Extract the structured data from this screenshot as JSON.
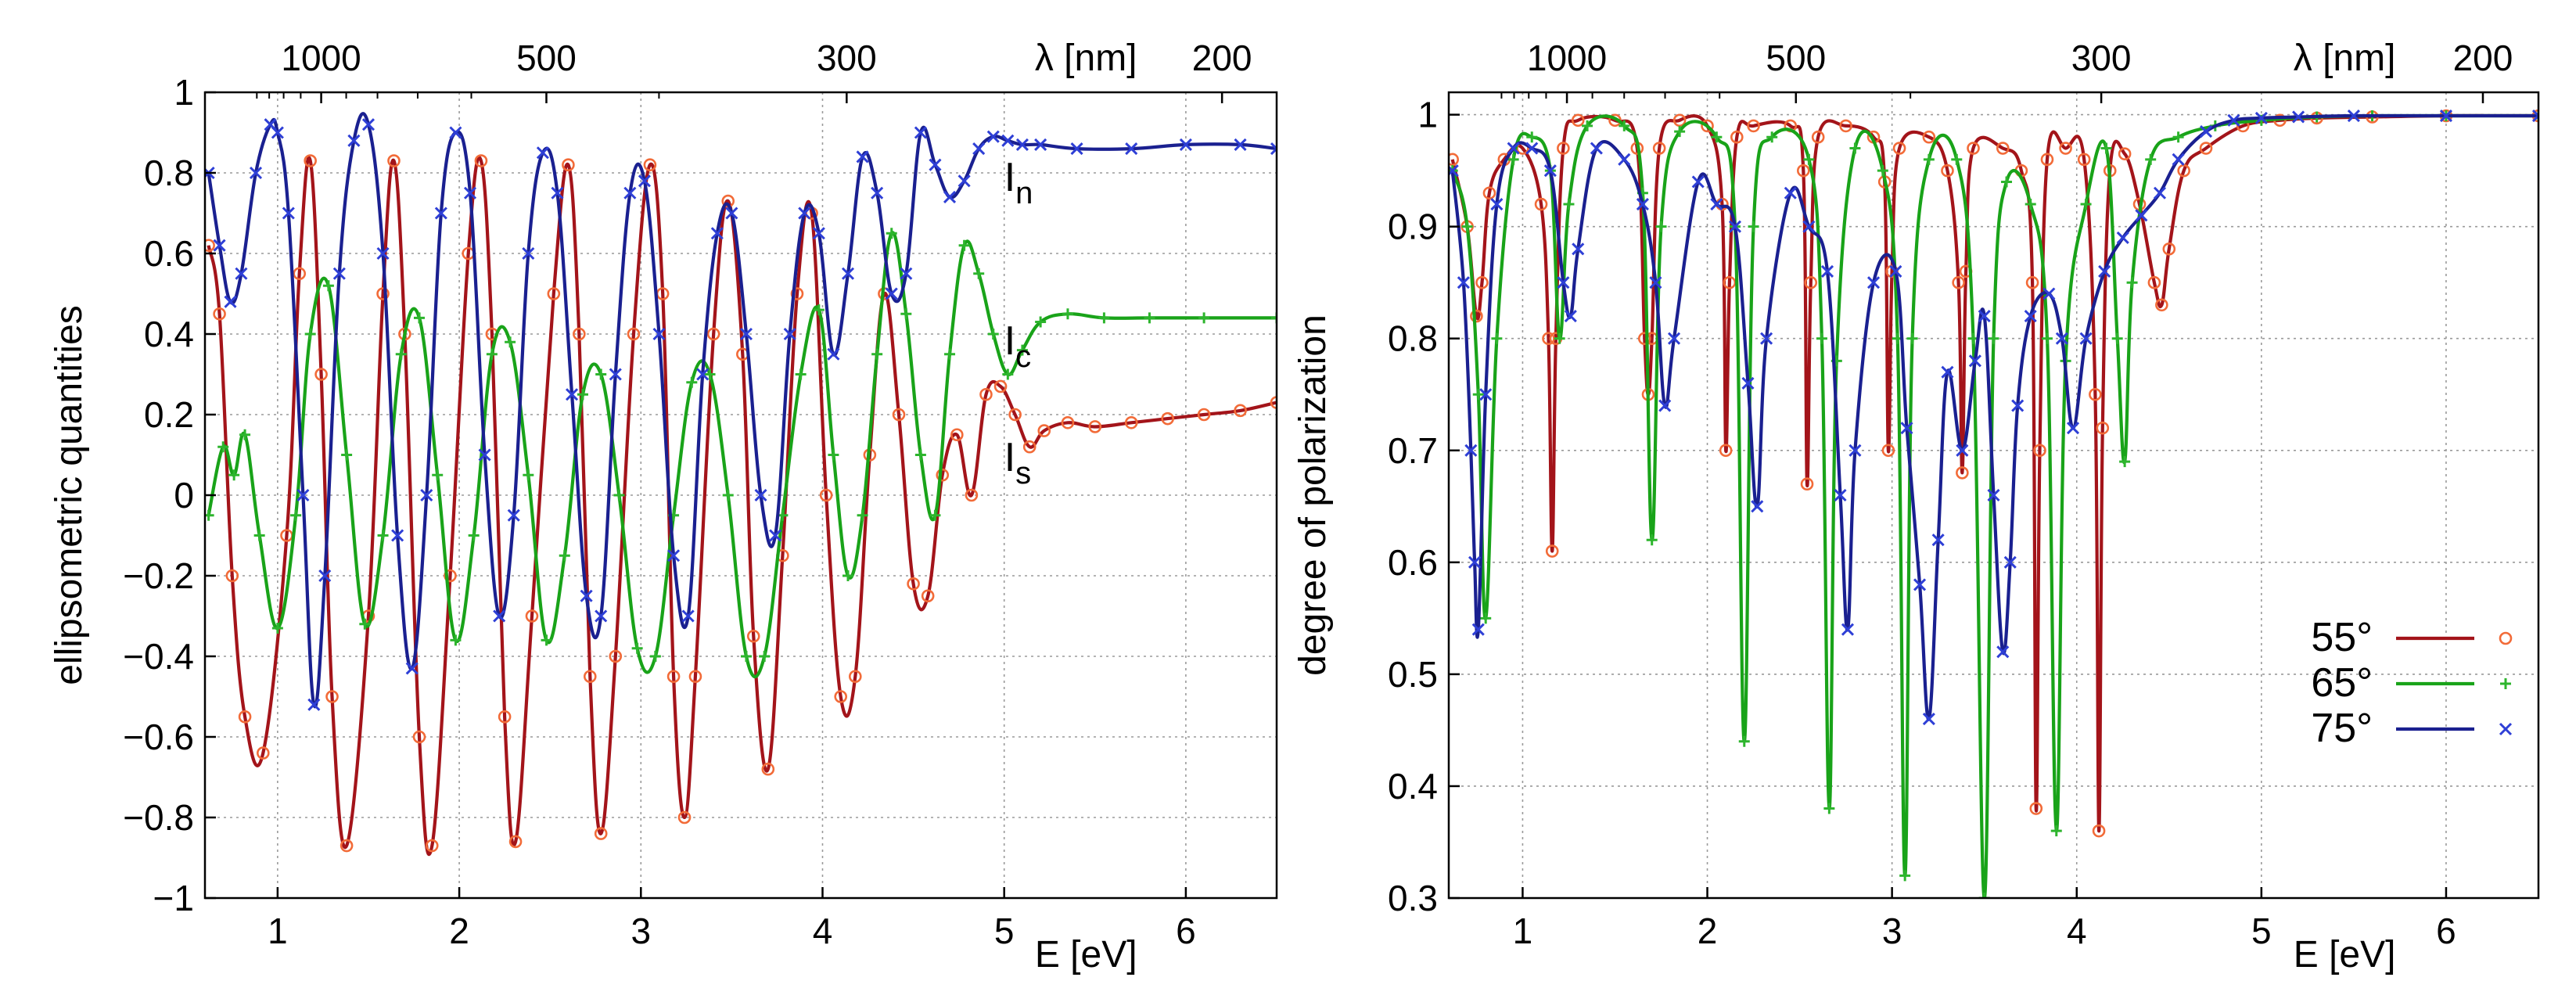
{
  "chart_data": [
    {
      "type": "line",
      "panel": "left",
      "ylabel": "ellipsometric quantities",
      "xlabel": "E [eV]",
      "top_axis_label": "λ [nm]",
      "xlim": [
        0.6,
        6.5
      ],
      "ylim": [
        -1,
        1
      ],
      "x_ticks": [
        1,
        2,
        3,
        4,
        5,
        6
      ],
      "x_tick_labels": [
        "1",
        "2",
        "3",
        "4",
        "5",
        "6"
      ],
      "y_ticks": [
        -1,
        -0.8,
        -0.6,
        -0.4,
        -0.2,
        0,
        0.2,
        0.4,
        0.6,
        0.8,
        1
      ],
      "y_tick_labels": [
        "−1",
        "−0.8",
        "−0.6",
        "−0.4",
        "−0.2",
        "0",
        "0.2",
        "0.4",
        "0.6",
        "0.8",
        "1"
      ],
      "top_ticks_nm": [
        1000,
        500,
        300,
        200
      ],
      "top_tick_labels": [
        "1000",
        "500",
        "300",
        "200"
      ],
      "grid": true,
      "annotations": [
        {
          "main": "I",
          "sub": "n",
          "x": 5.0,
          "y": 0.755
        },
        {
          "main": "I",
          "sub": "c",
          "x": 5.0,
          "y": 0.35
        },
        {
          "main": "I",
          "sub": "s",
          "x": 5.0,
          "y": 0.06
        }
      ],
      "series": [
        {
          "name": "Is (55°)",
          "color": "#A3141A",
          "marker_color": "#F26B38",
          "marker": "circle",
          "x": [
            0.62,
            0.68,
            0.75,
            0.82,
            0.92,
            1.05,
            1.12,
            1.18,
            1.24,
            1.3,
            1.38,
            1.5,
            1.58,
            1.64,
            1.7,
            1.78,
            1.85,
            1.95,
            2.05,
            2.12,
            2.18,
            2.25,
            2.31,
            2.4,
            2.52,
            2.6,
            2.66,
            2.72,
            2.78,
            2.86,
            2.96,
            3.05,
            3.12,
            3.18,
            3.24,
            3.3,
            3.4,
            3.48,
            3.56,
            3.62,
            3.7,
            3.78,
            3.86,
            3.94,
            4.02,
            4.1,
            4.18,
            4.26,
            4.34,
            4.42,
            4.5,
            4.58,
            4.66,
            4.74,
            4.82,
            4.9,
            4.98,
            5.06,
            5.14,
            5.22,
            5.35,
            5.5,
            5.7,
            5.9,
            6.1,
            6.3,
            6.5
          ],
          "y": [
            0.62,
            0.45,
            -0.2,
            -0.55,
            -0.64,
            -0.1,
            0.55,
            0.83,
            0.3,
            -0.5,
            -0.87,
            -0.3,
            0.5,
            0.83,
            0.4,
            -0.6,
            -0.87,
            -0.2,
            0.6,
            0.83,
            0.4,
            -0.55,
            -0.86,
            -0.3,
            0.5,
            0.82,
            0.4,
            -0.45,
            -0.84,
            -0.4,
            0.4,
            0.82,
            0.5,
            -0.45,
            -0.8,
            -0.45,
            0.4,
            0.73,
            0.35,
            -0.35,
            -0.68,
            -0.15,
            0.5,
            0.7,
            0.0,
            -0.5,
            -0.45,
            0.1,
            0.5,
            0.2,
            -0.22,
            -0.25,
            0.05,
            0.15,
            0.0,
            0.25,
            0.27,
            0.2,
            0.12,
            0.16,
            0.18,
            0.17,
            0.18,
            0.19,
            0.2,
            0.21,
            0.23
          ]
        },
        {
          "name": "Ic (65°)",
          "color": "#19A319",
          "marker_color": "#2DB52D",
          "marker": "plus",
          "x": [
            0.62,
            0.7,
            0.76,
            0.82,
            0.9,
            1.0,
            1.1,
            1.18,
            1.28,
            1.38,
            1.48,
            1.58,
            1.68,
            1.78,
            1.88,
            1.98,
            2.08,
            2.18,
            2.28,
            2.38,
            2.48,
            2.58,
            2.68,
            2.78,
            2.88,
            2.98,
            3.08,
            3.18,
            3.28,
            3.38,
            3.48,
            3.58,
            3.68,
            3.78,
            3.88,
            3.98,
            4.06,
            4.14,
            4.22,
            4.3,
            4.38,
            4.46,
            4.54,
            4.62,
            4.7,
            4.78,
            4.86,
            4.94,
            5.02,
            5.1,
            5.2,
            5.35,
            5.55,
            5.8,
            6.1,
            6.5
          ],
          "y": [
            -0.05,
            0.12,
            0.05,
            0.15,
            -0.1,
            -0.33,
            -0.05,
            0.4,
            0.52,
            0.1,
            -0.32,
            -0.1,
            0.35,
            0.44,
            0.05,
            -0.36,
            -0.1,
            0.35,
            0.38,
            0.05,
            -0.36,
            -0.15,
            0.25,
            0.3,
            0.0,
            -0.38,
            -0.4,
            -0.05,
            0.28,
            0.3,
            0.0,
            -0.4,
            -0.4,
            -0.05,
            0.3,
            0.46,
            0.1,
            -0.2,
            -0.05,
            0.35,
            0.65,
            0.45,
            0.1,
            -0.05,
            0.35,
            0.62,
            0.55,
            0.4,
            0.3,
            0.36,
            0.43,
            0.45,
            0.44,
            0.44,
            0.44,
            0.44
          ]
        },
        {
          "name": "In (75°)",
          "color": "#1A2090",
          "marker_color": "#2E3FD6",
          "marker": "x",
          "x": [
            0.62,
            0.68,
            0.74,
            0.8,
            0.88,
            0.96,
            1.0,
            1.06,
            1.14,
            1.2,
            1.26,
            1.34,
            1.42,
            1.5,
            1.58,
            1.66,
            1.74,
            1.82,
            1.9,
            1.98,
            2.06,
            2.14,
            2.22,
            2.3,
            2.38,
            2.46,
            2.54,
            2.62,
            2.7,
            2.78,
            2.86,
            2.94,
            3.02,
            3.1,
            3.18,
            3.26,
            3.34,
            3.42,
            3.5,
            3.58,
            3.66,
            3.74,
            3.82,
            3.9,
            3.98,
            4.06,
            4.14,
            4.22,
            4.3,
            4.38,
            4.46,
            4.54,
            4.62,
            4.7,
            4.78,
            4.86,
            4.94,
            5.02,
            5.1,
            5.2,
            5.4,
            5.7,
            6.0,
            6.3,
            6.5
          ],
          "y": [
            0.8,
            0.62,
            0.48,
            0.55,
            0.8,
            0.92,
            0.9,
            0.7,
            0.0,
            -0.52,
            -0.2,
            0.55,
            0.88,
            0.92,
            0.6,
            -0.1,
            -0.43,
            0.0,
            0.7,
            0.9,
            0.75,
            0.1,
            -0.3,
            -0.05,
            0.6,
            0.85,
            0.75,
            0.25,
            -0.25,
            -0.3,
            0.3,
            0.75,
            0.78,
            0.4,
            -0.15,
            -0.3,
            0.3,
            0.65,
            0.7,
            0.4,
            0.0,
            -0.1,
            0.4,
            0.7,
            0.65,
            0.35,
            0.55,
            0.84,
            0.75,
            0.5,
            0.55,
            0.9,
            0.82,
            0.74,
            0.78,
            0.86,
            0.89,
            0.88,
            0.87,
            0.87,
            0.86,
            0.86,
            0.87,
            0.87,
            0.86
          ]
        }
      ]
    },
    {
      "type": "line",
      "panel": "right",
      "ylabel": "degree of polarization",
      "xlabel": "E [eV]",
      "top_axis_label": "λ [nm]",
      "xlim": [
        0.6,
        6.5
      ],
      "ylim": [
        0.3,
        1.02
      ],
      "x_ticks": [
        1,
        2,
        3,
        4,
        5,
        6
      ],
      "x_tick_labels": [
        "1",
        "2",
        "3",
        "4",
        "5",
        "6"
      ],
      "y_ticks": [
        0.3,
        0.4,
        0.5,
        0.6,
        0.7,
        0.8,
        0.9,
        1
      ],
      "y_tick_labels": [
        "0.3",
        "0.4",
        "0.5",
        "0.6",
        "0.7",
        "0.8",
        "0.9",
        "1"
      ],
      "top_ticks_nm": [
        1000,
        500,
        300,
        200
      ],
      "top_tick_labels": [
        "1000",
        "500",
        "300",
        "200"
      ],
      "grid": true,
      "legend": {
        "position": "bottom-right",
        "entries": [
          {
            "label": "55°",
            "color": "#A3141A",
            "marker_color": "#F26B38",
            "marker": "circle"
          },
          {
            "label": "65°",
            "color": "#19A319",
            "marker_color": "#2DB52D",
            "marker": "plus"
          },
          {
            "label": "75°",
            "color": "#1A2090",
            "marker_color": "#2E3FD6",
            "marker": "x"
          }
        ]
      },
      "series": [
        {
          "name": "55°",
          "color": "#A3141A",
          "marker_color": "#F26B38",
          "marker": "circle",
          "x": [
            0.62,
            0.7,
            0.75,
            0.78,
            0.82,
            0.9,
            1.0,
            1.1,
            1.14,
            1.16,
            1.18,
            1.22,
            1.3,
            1.5,
            1.62,
            1.66,
            1.68,
            1.7,
            1.74,
            1.85,
            2.0,
            2.08,
            2.1,
            2.12,
            2.16,
            2.25,
            2.45,
            2.52,
            2.54,
            2.56,
            2.6,
            2.75,
            2.9,
            2.96,
            2.98,
            3.0,
            3.04,
            3.2,
            3.3,
            3.36,
            3.38,
            3.4,
            3.44,
            3.6,
            3.7,
            3.76,
            3.78,
            3.8,
            3.84,
            3.94,
            4.04,
            4.1,
            4.12,
            4.14,
            4.18,
            4.26,
            4.34,
            4.42,
            4.46,
            4.5,
            4.58,
            4.7,
            4.9,
            5.1,
            5.3,
            5.6,
            6.0,
            6.5
          ],
          "y": [
            0.96,
            0.9,
            0.82,
            0.85,
            0.93,
            0.96,
            0.97,
            0.92,
            0.8,
            0.61,
            0.8,
            0.97,
            0.995,
            0.995,
            0.97,
            0.8,
            0.75,
            0.8,
            0.97,
            0.995,
            0.99,
            0.92,
            0.7,
            0.85,
            0.98,
            0.99,
            0.99,
            0.95,
            0.67,
            0.85,
            0.98,
            0.99,
            0.98,
            0.94,
            0.7,
            0.86,
            0.97,
            0.98,
            0.95,
            0.85,
            0.68,
            0.86,
            0.97,
            0.97,
            0.95,
            0.85,
            0.38,
            0.7,
            0.96,
            0.97,
            0.96,
            0.75,
            0.36,
            0.72,
            0.95,
            0.965,
            0.92,
            0.85,
            0.83,
            0.88,
            0.95,
            0.97,
            0.99,
            0.995,
            0.997,
            0.998,
            0.999,
            0.999
          ]
        },
        {
          "name": "65°",
          "color": "#19A319",
          "marker_color": "#2DB52D",
          "marker": "plus",
          "x": [
            0.62,
            0.7,
            0.76,
            0.8,
            0.86,
            0.95,
            1.05,
            1.15,
            1.2,
            1.25,
            1.35,
            1.55,
            1.65,
            1.7,
            1.75,
            1.85,
            2.05,
            2.15,
            2.2,
            2.25,
            2.35,
            2.55,
            2.62,
            2.66,
            2.7,
            2.8,
            2.95,
            3.03,
            3.07,
            3.11,
            3.2,
            3.35,
            3.44,
            3.5,
            3.55,
            3.62,
            3.75,
            3.84,
            3.89,
            3.94,
            4.05,
            4.16,
            4.22,
            4.26,
            4.3,
            4.4,
            4.55,
            4.75,
            5.0,
            5.3,
            5.6,
            6.0,
            6.5
          ],
          "y": [
            0.95,
            0.9,
            0.75,
            0.55,
            0.8,
            0.96,
            0.98,
            0.95,
            0.8,
            0.92,
            0.99,
            0.99,
            0.93,
            0.62,
            0.9,
            0.985,
            0.98,
            0.9,
            0.44,
            0.9,
            0.98,
            0.96,
            0.8,
            0.38,
            0.78,
            0.97,
            0.95,
            0.8,
            0.32,
            0.8,
            0.96,
            0.96,
            0.8,
            0.3,
            0.8,
            0.94,
            0.92,
            0.8,
            0.36,
            0.78,
            0.92,
            0.97,
            0.8,
            0.69,
            0.85,
            0.96,
            0.98,
            0.99,
            0.995,
            0.998,
            0.999,
            0.999,
            0.999
          ]
        },
        {
          "name": "75°",
          "color": "#1A2090",
          "marker_color": "#2E3FD6",
          "marker": "x",
          "x": [
            0.62,
            0.68,
            0.72,
            0.74,
            0.76,
            0.8,
            0.86,
            0.95,
            1.05,
            1.15,
            1.22,
            1.26,
            1.3,
            1.4,
            1.55,
            1.65,
            1.72,
            1.77,
            1.82,
            1.95,
            2.05,
            2.15,
            2.22,
            2.27,
            2.32,
            2.45,
            2.55,
            2.65,
            2.72,
            2.76,
            2.8,
            2.9,
            3.02,
            3.08,
            3.15,
            3.2,
            3.25,
            3.3,
            3.38,
            3.45,
            3.5,
            3.55,
            3.6,
            3.64,
            3.68,
            3.75,
            3.85,
            3.92,
            3.98,
            4.05,
            4.15,
            4.25,
            4.35,
            4.45,
            4.55,
            4.7,
            4.85,
            5.0,
            5.2,
            5.5,
            6.0,
            6.5
          ],
          "y": [
            0.95,
            0.85,
            0.7,
            0.6,
            0.54,
            0.75,
            0.92,
            0.97,
            0.97,
            0.95,
            0.85,
            0.82,
            0.88,
            0.97,
            0.96,
            0.92,
            0.85,
            0.74,
            0.8,
            0.94,
            0.92,
            0.9,
            0.76,
            0.65,
            0.8,
            0.93,
            0.9,
            0.86,
            0.66,
            0.54,
            0.7,
            0.85,
            0.86,
            0.72,
            0.58,
            0.46,
            0.62,
            0.77,
            0.7,
            0.78,
            0.82,
            0.66,
            0.52,
            0.6,
            0.74,
            0.82,
            0.84,
            0.8,
            0.72,
            0.8,
            0.86,
            0.89,
            0.91,
            0.93,
            0.96,
            0.985,
            0.995,
            0.997,
            0.998,
            0.999,
            0.999,
            0.999
          ]
        }
      ]
    }
  ]
}
